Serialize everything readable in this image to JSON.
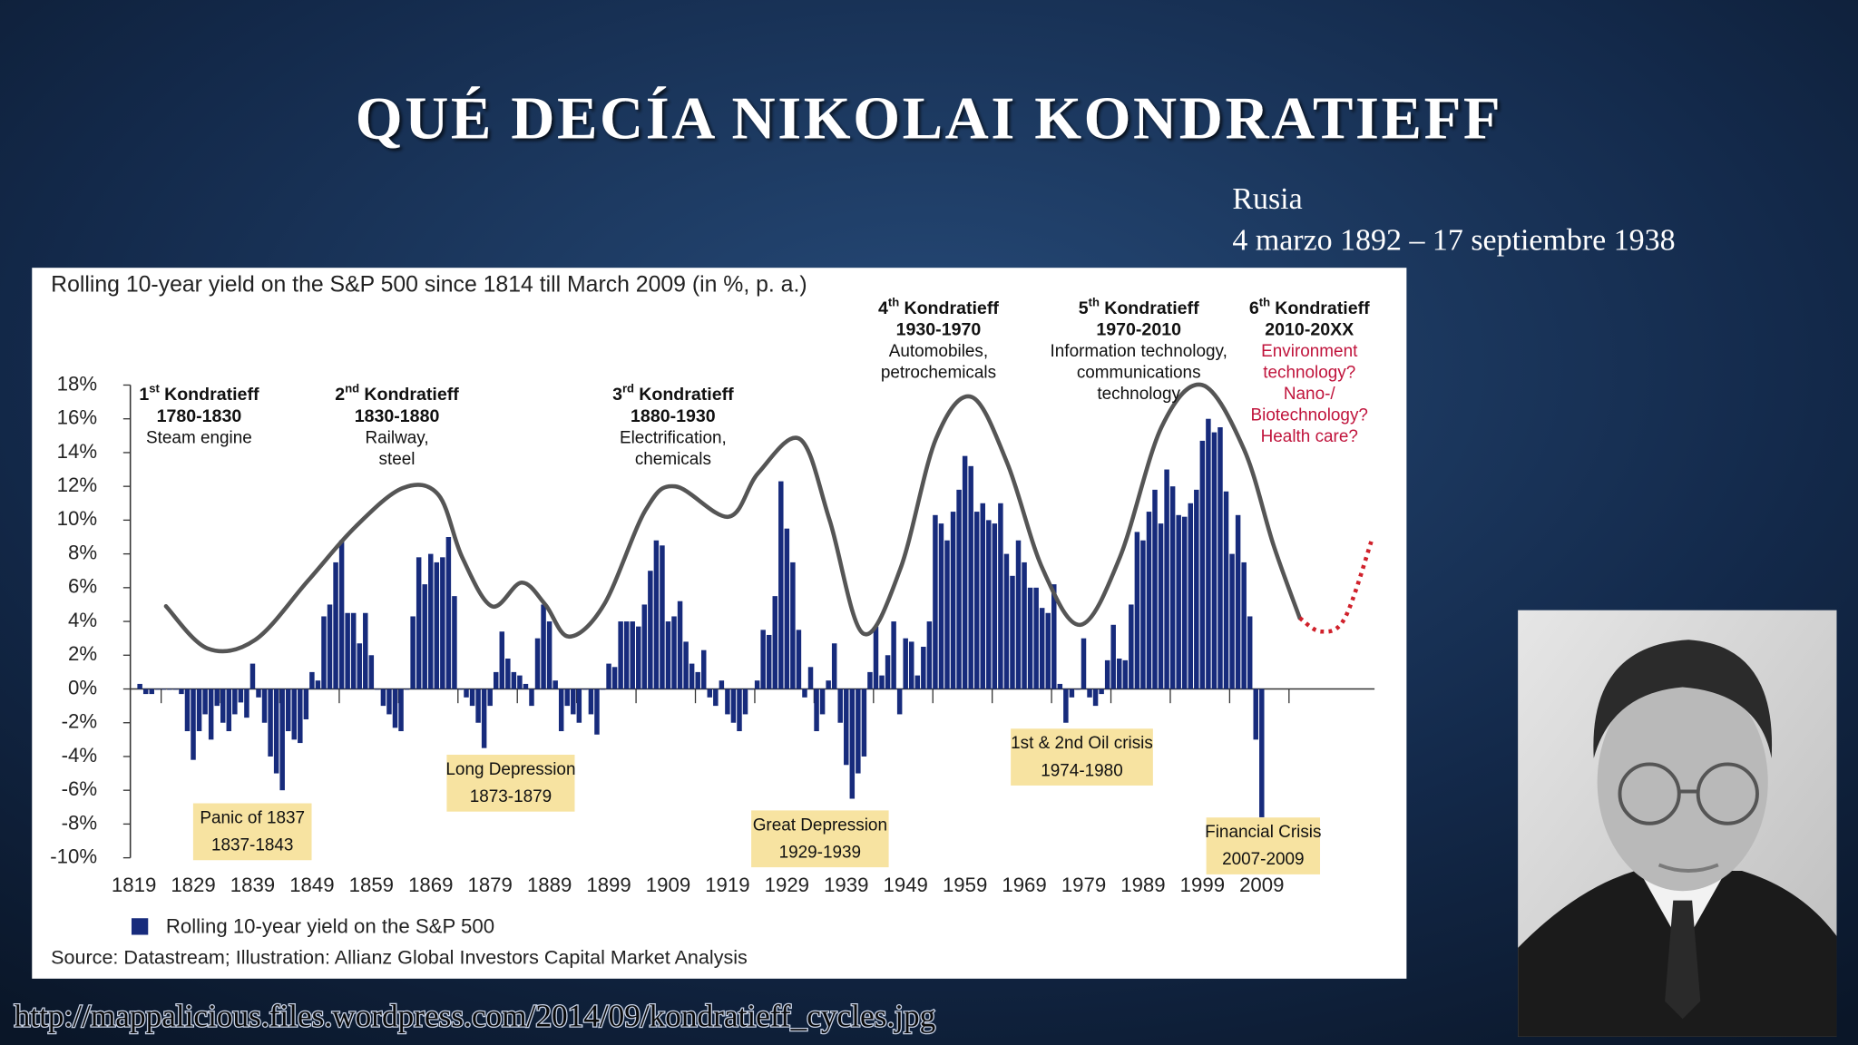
{
  "slide": {
    "title": "QUÉ DECÍA NIKOLAI KONDRATIEFF",
    "subtitle_lines": [
      "Rusia",
      "4 marzo 1892 – 17 septiembre 1938"
    ],
    "source_url": "http://mappalicious.files.wordpress.com/2014/09/kondratieff_cycles.jpg"
  },
  "chart_data": {
    "type": "bar",
    "title": "Rolling 10-year yield on the S&P 500 since 1814 till March 2009 (in %, p. a.)",
    "source": "Source: Datastream; Illustration: Allianz Global Investors Capital Market Analysis",
    "x": [
      1820,
      1821,
      1822,
      1823,
      1824,
      1825,
      1826,
      1827,
      1828,
      1829,
      1830,
      1831,
      1832,
      1833,
      1834,
      1835,
      1836,
      1837,
      1838,
      1839,
      1840,
      1841,
      1842,
      1843,
      1844,
      1845,
      1846,
      1847,
      1848,
      1849,
      1850,
      1851,
      1852,
      1853,
      1854,
      1855,
      1856,
      1857,
      1858,
      1859,
      1860,
      1861,
      1862,
      1863,
      1864,
      1865,
      1866,
      1867,
      1868,
      1869,
      1870,
      1871,
      1872,
      1873,
      1874,
      1875,
      1876,
      1877,
      1878,
      1879,
      1880,
      1881,
      1882,
      1883,
      1884,
      1885,
      1886,
      1887,
      1888,
      1889,
      1890,
      1891,
      1892,
      1893,
      1894,
      1895,
      1896,
      1897,
      1898,
      1899,
      1900,
      1901,
      1902,
      1903,
      1904,
      1905,
      1906,
      1907,
      1908,
      1909,
      1910,
      1911,
      1912,
      1913,
      1914,
      1915,
      1916,
      1917,
      1918,
      1919,
      1920,
      1921,
      1922,
      1923,
      1924,
      1925,
      1926,
      1927,
      1928,
      1929,
      1930,
      1931,
      1932,
      1933,
      1934,
      1935,
      1936,
      1937,
      1938,
      1939,
      1940,
      1941,
      1942,
      1943,
      1944,
      1945,
      1946,
      1947,
      1948,
      1949,
      1950,
      1951,
      1952,
      1953,
      1954,
      1955,
      1956,
      1957,
      1958,
      1959,
      1960,
      1961,
      1962,
      1963,
      1964,
      1965,
      1966,
      1967,
      1968,
      1969,
      1970,
      1971,
      1972,
      1973,
      1974,
      1975,
      1976,
      1977,
      1978,
      1979,
      1980,
      1981,
      1982,
      1983,
      1984,
      1985,
      1986,
      1987,
      1988,
      1989,
      1990,
      1991,
      1992,
      1993,
      1994,
      1995,
      1996,
      1997,
      1998,
      1999,
      2000,
      2001,
      2002,
      2003,
      2004,
      2005,
      2006,
      2007,
      2008,
      2009
    ],
    "series": [
      {
        "name": "Rolling 10-year yield on the S&P 500",
        "color": "#172b7c",
        "values": [
          0.3,
          -0.3,
          -0.3,
          0,
          0,
          0,
          0,
          -0.3,
          -2.5,
          -4.2,
          -2.5,
          -1.5,
          -3.0,
          -1.0,
          -2.0,
          -2.5,
          -1.5,
          -0.8,
          -1.7,
          1.5,
          -0.5,
          -2.0,
          -4.0,
          -5.0,
          -6.0,
          -2.5,
          -3.0,
          -3.2,
          -1.8,
          1.0,
          0.5,
          4.3,
          5.0,
          7.5,
          8.8,
          4.5,
          4.5,
          2.7,
          4.5,
          2.0,
          0,
          -1.0,
          -1.5,
          -2.3,
          -2.5,
          0,
          4.3,
          7.8,
          6.2,
          8.0,
          7.5,
          7.8,
          9.0,
          5.5,
          0,
          -0.5,
          -1.0,
          -2.0,
          -3.5,
          -1.0,
          1.0,
          3.4,
          1.8,
          1.0,
          0.8,
          0.3,
          -1.0,
          3.0,
          5.0,
          4.0,
          0.5,
          -2.5,
          -1.0,
          -1.5,
          -2.0,
          0,
          -1.5,
          -2.7,
          0,
          1.5,
          1.3,
          4.0,
          4.0,
          4.0,
          3.7,
          5.0,
          7.0,
          8.8,
          8.5,
          4.0,
          4.3,
          5.2,
          2.8,
          1.5,
          1.0,
          2.3,
          -0.5,
          -1.0,
          0.5,
          -1.5,
          -2.0,
          -2.5,
          -1.5,
          0,
          0.5,
          3.5,
          3.2,
          5.5,
          12.3,
          9.5,
          7.5,
          3.5,
          -0.5,
          1.3,
          -2.5,
          -1.5,
          0.5,
          2.7,
          -2.0,
          -4.5,
          -6.5,
          -5.0,
          -4.0,
          1.0,
          3.7,
          0.8,
          2.0,
          4.0,
          -1.5,
          3.0,
          2.8,
          0.8,
          2.5,
          4.0,
          10.3,
          9.8,
          8.8,
          10.5,
          11.8,
          13.8,
          13.2,
          10.5,
          11.0,
          10.0,
          9.8,
          11.0,
          8.0,
          6.7,
          8.8,
          7.5,
          6.0,
          6.0,
          4.8,
          4.5,
          6.2,
          0.3,
          -2.0,
          -0.5,
          0,
          3.0,
          -0.5,
          -1.0,
          -0.3,
          1.7,
          3.8,
          1.8,
          1.7,
          5.0,
          9.3,
          8.8,
          10.5,
          11.8,
          9.8,
          13.0,
          12.0,
          10.3,
          10.2,
          11.0,
          11.8,
          14.7,
          16.0,
          15.2,
          15.5,
          11.7,
          8.0,
          10.3,
          7.5,
          4.3,
          -3.0,
          -7.6
        ]
      }
    ],
    "wave": {
      "color": "#555555",
      "x": [
        1824.4,
        1831.4,
        1839.4,
        1848.3,
        1856.3,
        1864.3,
        1870.3,
        1874.3,
        1879.3,
        1884.3,
        1888.3,
        1892.3,
        1898.2,
        1905.2,
        1910.2,
        1919.2,
        1924.2,
        1931.2,
        1936.2,
        1941.8,
        1948.1,
        1954.1,
        1960.1,
        1966.1,
        1972.1,
        1978.5,
        1985.1,
        1992.1,
        1999.0,
        2006.0,
        2011.0,
        2015.4
      ],
      "values": [
        4.9,
        2.4,
        2.9,
        6.4,
        9.6,
        11.9,
        11.5,
        7.8,
        4.9,
        6.3,
        5.0,
        3.1,
        5.0,
        10.6,
        12.0,
        10.2,
        12.8,
        14.8,
        10.0,
        3.3,
        7.1,
        14.8,
        17.3,
        13.4,
        7.1,
        3.8,
        7.8,
        15.5,
        18.0,
        14.2,
        8.5,
        4.2
      ]
    },
    "projection": {
      "color": "#d0202a",
      "x": [
        2015.4,
        2019,
        2023,
        2027.6
      ],
      "values": [
        4.2,
        3.4,
        4.2,
        8.9
      ]
    },
    "xlim": [
      1818,
      2028
    ],
    "xticks": [
      1819,
      1829,
      1839,
      1849,
      1859,
      1869,
      1879,
      1889,
      1899,
      1909,
      1919,
      1929,
      1939,
      1949,
      1959,
      1969,
      1979,
      1989,
      1999,
      2009
    ],
    "ylim": [
      -10,
      18
    ],
    "yticks": [
      {
        "value": -10,
        "label": "-10%"
      },
      {
        "value": -8,
        "label": "-8%"
      },
      {
        "value": -6,
        "label": "-6%"
      },
      {
        "value": -4,
        "label": "-4%"
      },
      {
        "value": -2,
        "label": "-2%"
      },
      {
        "value": 0,
        "label": "0%"
      },
      {
        "value": 2,
        "label": "2%"
      },
      {
        "value": 4,
        "label": "4%"
      },
      {
        "value": 6,
        "label": "6%"
      },
      {
        "value": 8,
        "label": "8%"
      },
      {
        "value": 10,
        "label": "10%"
      },
      {
        "value": 12,
        "label": "12%"
      },
      {
        "value": 14,
        "label": "14%"
      },
      {
        "value": 16,
        "label": "16%"
      },
      {
        "value": 18,
        "label": "18%"
      }
    ],
    "waves": [
      {
        "number": "1",
        "suffix": "st",
        "label": "Kondratieff",
        "period": "1780-1830",
        "notes": [
          "Steam engine"
        ]
      },
      {
        "number": "2",
        "suffix": "nd",
        "label": "Kondratieff",
        "period": "1830-1880",
        "notes": [
          "Railway,",
          "steel"
        ]
      },
      {
        "number": "3",
        "suffix": "rd",
        "label": "Kondratieff",
        "period": "1880-1930",
        "notes": [
          "Electrification,",
          "chemicals"
        ]
      },
      {
        "number": "4",
        "suffix": "th",
        "label": "Kondratieff",
        "period": "1930-1970",
        "notes": [
          "Automobiles,",
          "petrochemicals"
        ]
      },
      {
        "number": "5",
        "suffix": "th",
        "label": "Kondratieff",
        "period": "1970-2010",
        "notes": [
          "Information technology,",
          "communications",
          "technology"
        ]
      },
      {
        "number": "6",
        "suffix": "th",
        "label": "Kondratieff",
        "period": "2010-20XX",
        "notes": [
          "Environment",
          "technology?",
          "Nano-/",
          "Biotechnology?",
          "Health care?"
        ],
        "notes_color": "#c0143c"
      }
    ],
    "crises": [
      {
        "label": "Panic of 1837",
        "period": "1837-1843"
      },
      {
        "label": "Long Depression",
        "period": "1873-1879"
      },
      {
        "label": "Great Depression",
        "period": "1929-1939"
      },
      {
        "label": "1st & 2nd Oil crisis",
        "period": "1974-1980"
      },
      {
        "label": "Financial Crisis",
        "period": "2007-2009"
      }
    ]
  }
}
